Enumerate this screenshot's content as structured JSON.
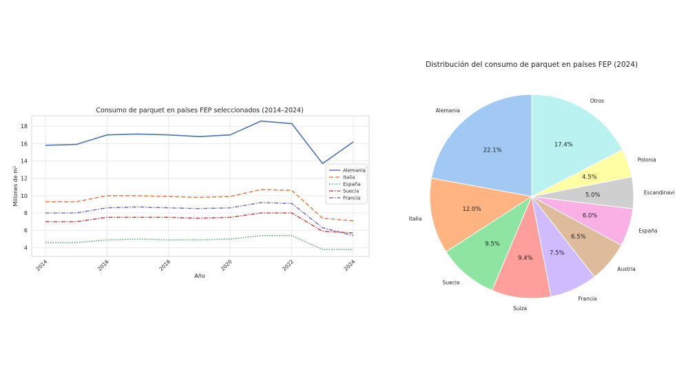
{
  "chart_data": [
    {
      "type": "line",
      "title": "Consumo de parquet en países FEP seleccionados (2014–2024)",
      "xlabel": "Año",
      "ylabel": "Millones de m²",
      "xlim": [
        2014,
        2024
      ],
      "ylim": [
        3.0,
        19.2
      ],
      "xticks": [
        "2014",
        "2016",
        "2018",
        "2020",
        "2022",
        "2024"
      ],
      "yticks": [
        "4",
        "6",
        "8",
        "10",
        "12",
        "14",
        "16",
        "18"
      ],
      "grid": true,
      "legend_position": "center-right",
      "x": [
        2014,
        2015,
        2016,
        2017,
        2018,
        2019,
        2020,
        2021,
        2022,
        2023,
        2024
      ],
      "series": [
        {
          "name": "Alemania",
          "color": "#4c72b0",
          "dash": "solid",
          "values": [
            15.8,
            15.9,
            17.0,
            17.1,
            17.0,
            16.8,
            17.0,
            18.6,
            18.3,
            13.7,
            16.2
          ]
        },
        {
          "name": "Italia",
          "color": "#dd8452",
          "dash": "dashed",
          "values": [
            9.3,
            9.3,
            10.0,
            10.0,
            9.9,
            9.8,
            9.9,
            10.7,
            10.6,
            7.4,
            7.1
          ]
        },
        {
          "name": "España",
          "color": "#55a868",
          "dash": "dotted",
          "values": [
            4.6,
            4.6,
            4.9,
            5.0,
            4.9,
            4.9,
            5.0,
            5.4,
            5.4,
            3.8,
            3.8
          ]
        },
        {
          "name": "Suecia",
          "color": "#c44e52",
          "dash": "dashdot",
          "values": [
            7.0,
            7.0,
            7.5,
            7.5,
            7.5,
            7.4,
            7.5,
            8.0,
            8.0,
            5.9,
            5.7
          ]
        },
        {
          "name": "Francia",
          "color": "#8172b3",
          "dash": "dashdot",
          "values": [
            8.0,
            8.0,
            8.6,
            8.7,
            8.6,
            8.5,
            8.6,
            9.2,
            9.1,
            6.3,
            5.4
          ]
        }
      ]
    },
    {
      "type": "pie",
      "title": "Distribución del consumo de parquet en países FEP (2024)",
      "start_angle_deg": 90,
      "direction": "counterclockwise",
      "slices": [
        {
          "label": "Alemania",
          "value": 22.1,
          "pct_label": "22.1%",
          "color": "#a1c9f4"
        },
        {
          "label": "Italia",
          "value": 12.0,
          "pct_label": "12.0%",
          "color": "#ffb482"
        },
        {
          "label": "Suecia",
          "value": 9.5,
          "pct_label": "9.5%",
          "color": "#8de5a1"
        },
        {
          "label": "Suiza",
          "value": 9.4,
          "pct_label": "9.4%",
          "color": "#ff9f9b"
        },
        {
          "label": "Francia",
          "value": 7.5,
          "pct_label": "7.5%",
          "color": "#d0bbff"
        },
        {
          "label": "Austria",
          "value": 6.5,
          "pct_label": "6.5%",
          "color": "#debb9b"
        },
        {
          "label": "España",
          "value": 6.0,
          "pct_label": "6.0%",
          "color": "#fab0e4"
        },
        {
          "label": "Escandinavia",
          "value": 5.0,
          "pct_label": "5.0%",
          "color": "#cfcfcf"
        },
        {
          "label": "Polonia",
          "value": 4.5,
          "pct_label": "4.5%",
          "color": "#fffea3"
        },
        {
          "label": "Otros",
          "value": 17.4,
          "pct_label": "17.4%",
          "color": "#b9f2f0"
        }
      ]
    }
  ]
}
